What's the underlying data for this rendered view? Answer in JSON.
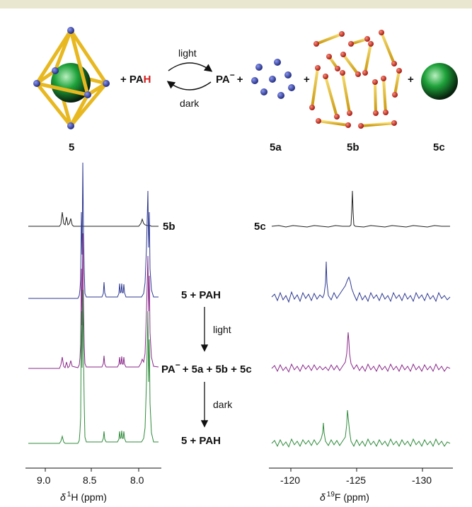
{
  "scheme": {
    "compound_5": "5",
    "plus_pah_prefix": "+ PA",
    "pah_h": "H",
    "light_label": "light",
    "dark_label": "dark",
    "pa_minus": "PA",
    "minus_sup": "−",
    "plus": "+",
    "label_5a": "5a",
    "label_5b": "5b",
    "label_5c": "5c"
  },
  "left_panel": {
    "trace_label_5b": "5b",
    "axis_ticks": [
      "9.0",
      "8.5",
      "8.0"
    ],
    "axis_title_delta": "δ",
    "axis_title_sup": "1",
    "axis_title_rest": "H (ppm)"
  },
  "center": {
    "label_5_pah": "5 + PAH",
    "arrow_light": "light",
    "label_pa_mix_pa": "PA",
    "label_pa_mix_sup": "−",
    "label_pa_mix_rest": "+ 5a + 5b + 5c",
    "arrow_dark": "dark",
    "label_5_pah_2": "5 + PAH"
  },
  "right_panel": {
    "trace_label_5c": "5c",
    "axis_ticks": [
      "-120",
      "-125",
      "-130"
    ],
    "axis_title_delta": "δ",
    "axis_title_sup": "19",
    "axis_title_rest": "F (ppm)"
  },
  "colors": {
    "trace_5b": "#222222",
    "trace_5_pah": "#2f3a92",
    "trace_light": "#8a2a8a",
    "trace_dark": "#2e8b3a",
    "cage_yellow": "#e8b820",
    "cage_node": "#2b3aa8",
    "rod_node": "#d42a1a",
    "sphere_green": "#1ea23a",
    "pah_h_red": "#d21a1a"
  }
}
